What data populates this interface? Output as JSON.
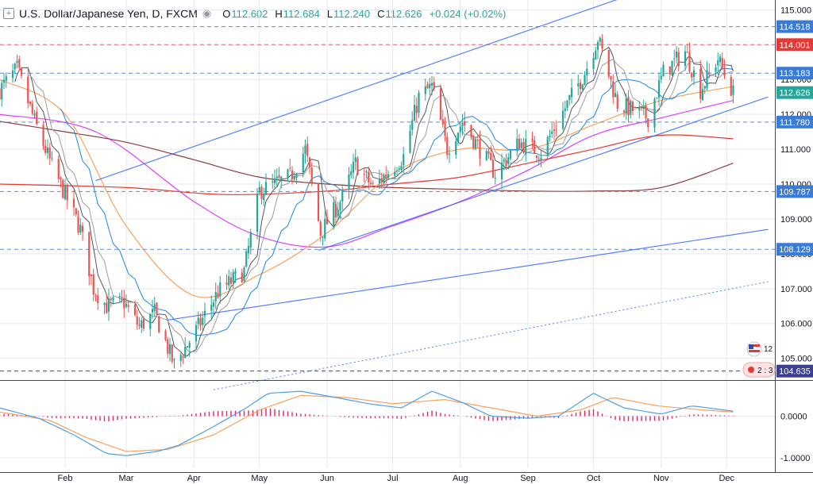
{
  "legend": {
    "symbol_icon": "plus-square-icon",
    "title": "U.S. Dollar/Japanese Yen, D, FXCM",
    "eye_icon": "eye-icon",
    "o_label": "O",
    "o_value": "112.602",
    "h_label": "H",
    "h_value": "112.684",
    "l_label": "L",
    "l_value": "112.240",
    "c_label": "C",
    "c_value": "112.626",
    "change": "+0.024 (+0.02%)"
  },
  "colors": {
    "up": "#26a69a",
    "down": "#ef5350",
    "bg": "#ffffff",
    "grid": "#e6e9ee",
    "channel": "#2962ff",
    "ma_pink": "#e040fb",
    "ma_orange": "#f7a35c",
    "ma_red": "#e53935",
    "ma_brown": "#8d3a3a",
    "ma_blue": "#1e88e5",
    "ma_gray": "#555555",
    "hline_blue": "#5b8bd6",
    "hline_red": "#e06666",
    "hline_navy": "#3a4a8a",
    "price_tag": "#3a7bd5",
    "macd_blue": "#4f9fe8",
    "macd_orange": "#f6a15c",
    "macd_hist": "#e91e63"
  },
  "widgets": {
    "flag_badge": "12",
    "ratio_badge": "2 : 3"
  },
  "chart_data": {
    "type": "candlestick",
    "title": "U.S. Dollar/Japanese Yen, D, FXCM",
    "x_ticks": [
      "Feb",
      "Mar",
      "Apr",
      "May",
      "Jun",
      "Jul",
      "Aug",
      "Sep",
      "Oct",
      "Nov",
      "Dec"
    ],
    "price_axis": {
      "ticks": [
        "115.000",
        "114.000",
        "113.000",
        "112.000",
        "111.000",
        "110.000",
        "109.000",
        "108.000",
        "107.000",
        "106.000",
        "105.000"
      ],
      "ylim": [
        104.4,
        115.1
      ]
    },
    "price_labels": [
      {
        "value": 114.518,
        "text": "114.518",
        "style": "blue"
      },
      {
        "value": 114.001,
        "text": "114.001",
        "style": "red"
      },
      {
        "value": 113.183,
        "text": "113.183",
        "style": "blue"
      },
      {
        "value": 112.626,
        "text": "112.626",
        "style": "last"
      },
      {
        "value": 111.78,
        "text": "111.780",
        "style": "blue"
      },
      {
        "value": 109.787,
        "text": "109.787",
        "style": "blue"
      },
      {
        "value": 108.129,
        "text": "108.129",
        "style": "blue"
      },
      {
        "value": 104.635,
        "text": "104.635",
        "style": "navy"
      }
    ],
    "horizontal_lines": [
      {
        "value": 114.518,
        "color": "blue"
      },
      {
        "value": 114.001,
        "color": "red"
      },
      {
        "value": 113.183,
        "color": "blue"
      },
      {
        "value": 111.78,
        "color": "blue"
      },
      {
        "value": 109.787,
        "color": "blue"
      },
      {
        "value": 108.129,
        "color": "blue"
      },
      {
        "value": 104.635,
        "color": "navy"
      }
    ],
    "price_path_anchors": [
      [
        "Jan 02",
        112.7
      ],
      [
        "Jan 10",
        113.3
      ],
      [
        "Jan 18",
        111.8
      ],
      [
        "Jan 26",
        110.5
      ],
      [
        "Feb 01",
        109.7
      ],
      [
        "Feb 08",
        108.7
      ],
      [
        "Feb 14",
        107.0
      ],
      [
        "Feb 20",
        106.5
      ],
      [
        "Feb 28",
        106.6
      ],
      [
        "Mar 07",
        105.9
      ],
      [
        "Mar 14",
        106.3
      ],
      [
        "Mar 23",
        104.8
      ],
      [
        "Apr 02",
        105.8
      ],
      [
        "Apr 12",
        106.9
      ],
      [
        "Apr 24",
        107.5
      ],
      [
        "May 01",
        109.8
      ],
      [
        "May 15",
        110.2
      ],
      [
        "May 22",
        111.0
      ],
      [
        "May 29",
        108.6
      ],
      [
        "Jun 08",
        109.6
      ],
      [
        "Jun 14",
        110.6
      ],
      [
        "Jun 22",
        109.9
      ],
      [
        "Jul 06",
        110.8
      ],
      [
        "Jul 13",
        112.5
      ],
      [
        "Jul 19",
        112.8
      ],
      [
        "Jul 26",
        111.0
      ],
      [
        "Aug 02",
        111.8
      ],
      [
        "Aug 10",
        111.0
      ],
      [
        "Aug 17",
        110.3
      ],
      [
        "Aug 28",
        111.2
      ],
      [
        "Sep 07",
        110.9
      ],
      [
        "Sep 19",
        112.3
      ],
      [
        "Sep 27",
        113.2
      ],
      [
        "Oct 03",
        114.2
      ],
      [
        "Oct 12",
        112.3
      ],
      [
        "Oct 20",
        112.1
      ],
      [
        "Oct 26",
        111.9
      ],
      [
        "Nov 02",
        113.2
      ],
      [
        "Nov 12",
        113.8
      ],
      [
        "Nov 19",
        112.7
      ],
      [
        "Nov 27",
        113.6
      ],
      [
        "Dec 04",
        112.6
      ]
    ],
    "trendlines": [
      {
        "from": [
          "Mar 20",
          106.1
        ],
        "to": [
          "Dec 20",
          108.7
        ],
        "style": "solid"
      },
      {
        "from": [
          "Feb 15",
          110.1
        ],
        "to": [
          "Dec 20",
          116.8
        ],
        "style": "solid"
      },
      {
        "from": [
          "May 28",
          108.1
        ],
        "to": [
          "Dec 20",
          112.5
        ],
        "style": "solid"
      },
      {
        "from": [
          "Apr 10",
          104.1
        ],
        "to": [
          "Dec 20",
          107.2
        ],
        "style": "dotted"
      }
    ],
    "moving_averages": [
      {
        "color": "pink",
        "points": [
          [
            "Jan 02",
            112.0
          ],
          [
            "Feb 15",
            111.5
          ],
          [
            "Apr 01",
            109.5
          ],
          [
            "May 01",
            108.5
          ],
          [
            "Jun 01",
            108.2
          ],
          [
            "Jul 01",
            108.8
          ],
          [
            "Aug 01",
            109.5
          ],
          [
            "Sep 01",
            110.4
          ],
          [
            "Oct 01",
            111.4
          ],
          [
            "Nov 01",
            111.9
          ],
          [
            "Dec 04",
            112.4
          ]
        ]
      },
      {
        "color": "brown",
        "points": [
          [
            "Jan 02",
            111.8
          ],
          [
            "Feb 01",
            111.5
          ],
          [
            "Mar 01",
            111.2
          ],
          [
            "Apr 01",
            110.7
          ],
          [
            "May 01",
            110.2
          ],
          [
            "Jun 01",
            110.0
          ],
          [
            "Jul 01",
            109.9
          ],
          [
            "Aug 01",
            109.85
          ],
          [
            "Sep 01",
            109.8
          ],
          [
            "Oct 01",
            109.8
          ],
          [
            "Nov 01",
            109.9
          ],
          [
            "Dec 04",
            110.6
          ]
        ]
      },
      {
        "color": "red",
        "points": [
          [
            "Jan 02",
            110.0
          ],
          [
            "Mar 01",
            109.9
          ],
          [
            "Apr 15",
            109.7
          ],
          [
            "Jun 01",
            109.8
          ],
          [
            "Jul 01",
            110.0
          ],
          [
            "Aug 01",
            110.2
          ],
          [
            "Sep 01",
            110.6
          ],
          [
            "Oct 01",
            111.0
          ],
          [
            "Nov 01",
            111.4
          ],
          [
            "Dec 04",
            111.3
          ]
        ]
      },
      {
        "color": "orange",
        "points": [
          [
            "Jan 02",
            113.0
          ],
          [
            "Feb 01",
            112.0
          ],
          [
            "Mar 01",
            108.8
          ],
          [
            "Apr 01",
            106.8
          ],
          [
            "May 01",
            107.4
          ],
          [
            "Jun 01",
            108.6
          ],
          [
            "Jul 01",
            110.3
          ],
          [
            "Aug 01",
            111.0
          ],
          [
            "Sep 01",
            111.0
          ],
          [
            "Oct 01",
            111.7
          ],
          [
            "Nov 01",
            112.4
          ],
          [
            "Dec 04",
            112.8
          ]
        ]
      }
    ],
    "macd": {
      "ticks": [
        "0.0000",
        "-1.0000"
      ],
      "ylim": [
        -1.25,
        0.85
      ],
      "line": [
        [
          "Jan 02",
          0.2
        ],
        [
          "Jan 20",
          -0.05
        ],
        [
          "Feb 05",
          -0.45
        ],
        [
          "Feb 20",
          -0.9
        ],
        [
          "Mar 01",
          -0.95
        ],
        [
          "Mar 15",
          -0.85
        ],
        [
          "Mar 25",
          -0.7
        ],
        [
          "Apr 10",
          -0.25
        ],
        [
          "Apr 25",
          0.2
        ],
        [
          "May 05",
          0.55
        ],
        [
          "May 20",
          0.6
        ],
        [
          "Jun 05",
          0.45
        ],
        [
          "Jun 20",
          0.3
        ],
        [
          "Jul 05",
          0.2
        ],
        [
          "Jul 19",
          0.6
        ],
        [
          "Aug 01",
          0.35
        ],
        [
          "Aug 15",
          0.0
        ],
        [
          "Sep 01",
          -0.05
        ],
        [
          "Sep 15",
          0.0
        ],
        [
          "Oct 01",
          0.55
        ],
        [
          "Oct 15",
          0.2
        ],
        [
          "Nov 01",
          0.05
        ],
        [
          "Nov 15",
          0.25
        ],
        [
          "Dec 04",
          0.12
        ]
      ],
      "signal": [
        [
          "Jan 02",
          0.1
        ],
        [
          "Jan 25",
          -0.1
        ],
        [
          "Feb 10",
          -0.5
        ],
        [
          "Mar 01",
          -0.85
        ],
        [
          "Mar 20",
          -0.8
        ],
        [
          "Apr 10",
          -0.45
        ],
        [
          "May 01",
          0.15
        ],
        [
          "May 20",
          0.5
        ],
        [
          "Jun 10",
          0.45
        ],
        [
          "Jul 01",
          0.3
        ],
        [
          "Jul 25",
          0.4
        ],
        [
          "Aug 15",
          0.2
        ],
        [
          "Sep 05",
          0.0
        ],
        [
          "Sep 25",
          0.15
        ],
        [
          "Oct 10",
          0.45
        ],
        [
          "Oct 30",
          0.25
        ],
        [
          "Nov 20",
          0.15
        ],
        [
          "Dec 04",
          0.1
        ]
      ]
    }
  }
}
